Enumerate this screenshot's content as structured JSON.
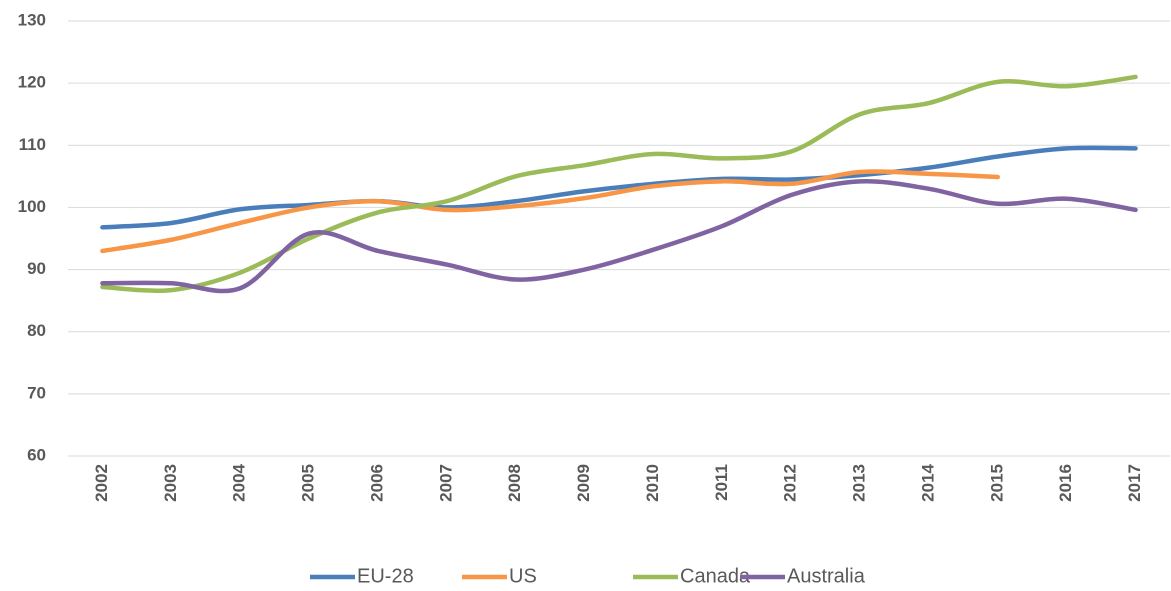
{
  "chart_data": {
    "type": "line",
    "categories": [
      "2002",
      "2003",
      "2004",
      "2005",
      "2006",
      "2007",
      "2008",
      "2009",
      "2010",
      "2011",
      "2012",
      "2013",
      "2014",
      "2015",
      "2016",
      "2017"
    ],
    "series": [
      {
        "name": "EU-28",
        "color": "#4a7ebb",
        "values": [
          96.8,
          97.5,
          99.7,
          100.4,
          101,
          100,
          101,
          102.6,
          103.8,
          104.6,
          104.5,
          105.2,
          106.4,
          108.2,
          109.5,
          109.5
        ]
      },
      {
        "name": "US",
        "color": "#f79646",
        "values": [
          93,
          94.8,
          97.5,
          100,
          101,
          99.6,
          100.2,
          101.5,
          103.4,
          104.2,
          103.8,
          105.7,
          105.4,
          104.9,
          null,
          null
        ]
      },
      {
        "name": "Canada",
        "color": "#9bbb59",
        "values": [
          87.2,
          86.7,
          89.5,
          95,
          99.2,
          101,
          105,
          106.8,
          108.6,
          107.9,
          109,
          115,
          116.8,
          120.2,
          119.5,
          121
        ]
      },
      {
        "name": "Australia",
        "color": "#8064a2",
        "values": [
          87.8,
          87.8,
          87,
          95.8,
          93,
          90.8,
          88.4,
          90,
          93.2,
          97,
          102,
          104.2,
          103,
          100.6,
          101.4,
          99.6
        ]
      }
    ],
    "ylim": [
      60,
      130
    ],
    "yticks": [
      60,
      70,
      80,
      90,
      100,
      110,
      120,
      130
    ],
    "grid": true,
    "legend": "bottom"
  }
}
